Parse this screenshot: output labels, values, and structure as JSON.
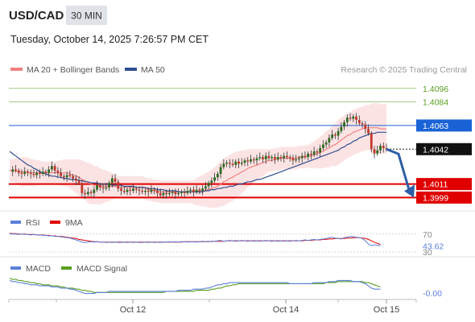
{
  "header": {
    "symbol": "USD/CAD",
    "timeframe": "30 MIN",
    "datetime": "Tuesday, October 14, 2025 7:26:57 PM CET",
    "credit": "Research © 2025 Trading Central"
  },
  "legend": {
    "ma20": {
      "label": "MA 20 + Bollinger Bands",
      "color": "#f08080"
    },
    "ma50": {
      "label": "MA 50",
      "color": "#2f4f8f"
    }
  },
  "chart_data": [
    {
      "type": "candlestick",
      "ylim": [
        1.399,
        1.4103
      ],
      "xticks": [
        "Oct 12",
        "Oct 14",
        "Oct 15"
      ],
      "current_price": 1.4042,
      "levels": [
        {
          "value": 1.4096,
          "label": "1.4096",
          "kind": "resistance",
          "color": "#5a9e1e"
        },
        {
          "value": 1.4084,
          "label": "1.4084",
          "kind": "resistance",
          "color": "#5a9e1e"
        },
        {
          "value": 1.4063,
          "label": "1.4063",
          "kind": "pivot",
          "color": "#1a63d6"
        },
        {
          "value": 1.4011,
          "label": "1.4011",
          "kind": "support",
          "color": "#e00000"
        },
        {
          "value": 1.3999,
          "label": "1.3999",
          "kind": "support",
          "color": "#e00000"
        }
      ],
      "price_path": [
        1.4022,
        1.4024,
        1.4023,
        1.4021,
        1.402,
        1.4022,
        1.4021,
        1.402,
        1.4019,
        1.4021,
        1.402,
        1.4022,
        1.4021,
        1.4024,
        1.4027,
        1.4023,
        1.4021,
        1.4018,
        1.4017,
        1.4019,
        1.4018,
        1.4016,
        1.4014,
        1.4012,
        1.4003,
        1.4002,
        1.4004,
        1.4003,
        1.4006,
        1.401,
        1.4008,
        1.4007,
        1.4008,
        1.4012,
        1.4016,
        1.4013,
        1.4007,
        1.4005,
        1.4004,
        1.4006,
        1.4005,
        1.4007,
        1.4006,
        1.4005,
        1.4004,
        1.4005,
        1.4004,
        1.4006,
        1.4005,
        1.4003,
        1.4001,
        1.4003,
        1.4002,
        1.4003,
        1.4004,
        1.4002,
        1.4003,
        1.4004,
        1.4003,
        1.4005,
        1.4006,
        1.4004,
        1.4006,
        1.4005,
        1.4007,
        1.4009,
        1.4012,
        1.4014,
        1.4017,
        1.402,
        1.4026,
        1.4029,
        1.403,
        1.4029,
        1.4028,
        1.4031,
        1.4029,
        1.403,
        1.4032,
        1.4031,
        1.4033,
        1.4032,
        1.4034,
        1.4035,
        1.4033,
        1.4036,
        1.4034,
        1.4035,
        1.4033,
        1.4035,
        1.4034,
        1.4036,
        1.4035,
        1.4034,
        1.4032,
        1.4033,
        1.4034,
        1.4036,
        1.4035,
        1.4038,
        1.4037,
        1.404,
        1.4039,
        1.4043,
        1.4046,
        1.4048,
        1.4052,
        1.4055,
        1.4054,
        1.4058,
        1.4062,
        1.4066,
        1.407,
        1.4069,
        1.4071,
        1.4068,
        1.4065,
        1.4064,
        1.406,
        1.4056,
        1.4042,
        1.4038,
        1.4041,
        1.4045,
        1.4043,
        1.4042
      ],
      "ma20": [
        1.4023,
        1.4023,
        1.4023,
        1.4022,
        1.4022,
        1.4022,
        1.4022,
        1.4021,
        1.4021,
        1.4021,
        1.4021,
        1.4021,
        1.4021,
        1.4021,
        1.4021,
        1.4021,
        1.4021,
        1.4021,
        1.4021,
        1.4021,
        1.402,
        1.4019,
        1.4018,
        1.4017,
        1.4015,
        1.4014,
        1.4012,
        1.4011,
        1.401,
        1.401,
        1.4009,
        1.4009,
        1.4009,
        1.4009,
        1.4009,
        1.4009,
        1.4008,
        1.4008,
        1.4008,
        1.4008,
        1.4008,
        1.4008,
        1.4008,
        1.4008,
        1.4008,
        1.4007,
        1.4006,
        1.4006,
        1.4005,
        1.4005,
        1.4004,
        1.4004,
        1.4004,
        1.4004,
        1.4004,
        1.4004,
        1.4004,
        1.4004,
        1.4004,
        1.4004,
        1.4004,
        1.4004,
        1.4004,
        1.4005,
        1.4005,
        1.4006,
        1.4006,
        1.4007,
        1.4008,
        1.4009,
        1.4011,
        1.4013,
        1.4014,
        1.4016,
        1.4017,
        1.4019,
        1.402,
        1.4022,
        1.4023,
        1.4025,
        1.4026,
        1.4027,
        1.4028,
        1.4029,
        1.403,
        1.4031,
        1.4032,
        1.4032,
        1.4033,
        1.4033,
        1.4034,
        1.4034,
        1.4034,
        1.4034,
        1.4034,
        1.4034,
        1.4035,
        1.4035,
        1.4035,
        1.4036,
        1.4036,
        1.4037,
        1.4038,
        1.4039,
        1.404,
        1.4042,
        1.4043,
        1.4045,
        1.4046,
        1.4048,
        1.405,
        1.4052,
        1.4054,
        1.4055,
        1.4057,
        1.4058,
        1.4059,
        1.406,
        1.4061,
        1.4061,
        1.4061,
        1.4061,
        1.4061,
        1.406,
        1.406,
        1.406
      ],
      "bb_width": [
        0.001,
        0.001,
        0.0011,
        0.0012,
        0.0013,
        0.0013,
        0.0013,
        0.0012,
        0.0012,
        0.0011,
        0.0011,
        0.001,
        0.001,
        0.001,
        0.001,
        0.001,
        0.0011,
        0.0011,
        0.0012,
        0.0012,
        0.0013,
        0.0014,
        0.0015,
        0.0016,
        0.0017,
        0.0017,
        0.0018,
        0.0018,
        0.0017,
        0.0017,
        0.0016,
        0.0015,
        0.0014,
        0.0013,
        0.0012,
        0.0011,
        0.001,
        0.001,
        0.001,
        0.001,
        0.001,
        0.001,
        0.001,
        0.001,
        0.001,
        0.001,
        0.001,
        0.001,
        0.001,
        0.001,
        0.001,
        0.001,
        0.001,
        0.001,
        0.001,
        0.001,
        0.001,
        0.001,
        0.001,
        0.001,
        0.001,
        0.0011,
        0.0012,
        0.0013,
        0.0014,
        0.0015,
        0.0016,
        0.0017,
        0.0018,
        0.0019,
        0.002,
        0.0021,
        0.0021,
        0.0021,
        0.0021,
        0.0021,
        0.002,
        0.0019,
        0.0018,
        0.0017,
        0.0016,
        0.0015,
        0.0014,
        0.0013,
        0.0012,
        0.0011,
        0.001,
        0.001,
        0.001,
        0.001,
        0.001,
        0.001,
        0.001,
        0.001,
        0.001,
        0.001,
        0.001,
        0.001,
        0.001,
        0.001,
        0.0011,
        0.0012,
        0.0013,
        0.0014,
        0.0015,
        0.0016,
        0.0017,
        0.0018,
        0.0019,
        0.002,
        0.002,
        0.002,
        0.002,
        0.002,
        0.002,
        0.002,
        0.002,
        0.002,
        0.002,
        0.002,
        0.0021,
        0.0022,
        0.0022,
        0.0022,
        0.0022,
        0.0022
      ],
      "ma50": [
        1.404,
        1.4038,
        1.4036,
        1.4034,
        1.4032,
        1.403,
        1.4028,
        1.4027,
        1.4025,
        1.4024,
        1.4022,
        1.4021,
        1.402,
        1.4019,
        1.4018,
        1.4018,
        1.4017,
        1.4017,
        1.4016,
        1.4016,
        1.4015,
        1.4015,
        1.4015,
        1.4014,
        1.4014,
        1.4013,
        1.4013,
        1.4012,
        1.4012,
        1.4012,
        1.4011,
        1.4011,
        1.4011,
        1.4011,
        1.401,
        1.401,
        1.401,
        1.401,
        1.4009,
        1.4009,
        1.4009,
        1.4009,
        1.4008,
        1.4008,
        1.4008,
        1.4008,
        1.4007,
        1.4007,
        1.4007,
        1.4006,
        1.4006,
        1.4006,
        1.4005,
        1.4005,
        1.4005,
        1.4005,
        1.4004,
        1.4004,
        1.4004,
        1.4004,
        1.4004,
        1.4004,
        1.4004,
        1.4004,
        1.4004,
        1.4005,
        1.4005,
        1.4006,
        1.4006,
        1.4007,
        1.4007,
        1.4008,
        1.4008,
        1.4009,
        1.4009,
        1.401,
        1.4011,
        1.4011,
        1.4012,
        1.4013,
        1.4013,
        1.4014,
        1.4015,
        1.4015,
        1.4016,
        1.4017,
        1.4018,
        1.4019,
        1.402,
        1.4021,
        1.4022,
        1.4023,
        1.4024,
        1.4025,
        1.4026,
        1.4027,
        1.4028,
        1.4029,
        1.403,
        1.4031,
        1.4032,
        1.4033,
        1.4034,
        1.4035,
        1.4036,
        1.4037,
        1.4038,
        1.4039,
        1.404,
        1.4041,
        1.4043,
        1.4044,
        1.4046,
        1.4047,
        1.4049,
        1.405,
        1.4052,
        1.4053,
        1.4054,
        1.4055,
        1.4056,
        1.4056,
        1.4057,
        1.4057,
        1.4057,
        1.4057
      ],
      "forecast_target": 1.3999
    },
    {
      "type": "line",
      "name": "RSI",
      "legend": [
        {
          "label": "RSI",
          "color": "#5b7fdb"
        },
        {
          "label": "9MA",
          "color": "#e00000"
        }
      ],
      "ylim": [
        30,
        75
      ],
      "axis_labels": [
        "70",
        "43.62",
        "30"
      ],
      "current": 43.62,
      "rsi": [
        71,
        70,
        70,
        69,
        70,
        69,
        69,
        68,
        69,
        68,
        68,
        67,
        67,
        66,
        66,
        65,
        65,
        64,
        63,
        62,
        61,
        59,
        57,
        55,
        52,
        51,
        52,
        53,
        52,
        53,
        52,
        52,
        51,
        52,
        51,
        52,
        51,
        51,
        52,
        51,
        52,
        51,
        52,
        51,
        51,
        52,
        51,
        52,
        51,
        52,
        51,
        52,
        52,
        53,
        52,
        53,
        52,
        53,
        53,
        52,
        53,
        53,
        52,
        53,
        54,
        53,
        54,
        53,
        54,
        55,
        56,
        54,
        55,
        56,
        55,
        54,
        55,
        56,
        55,
        54,
        55,
        54,
        55,
        54,
        55,
        56,
        55,
        54,
        55,
        54,
        55,
        54,
        55,
        54,
        55,
        56,
        55,
        56,
        57,
        56,
        57,
        58,
        57,
        58,
        59,
        60,
        62,
        63,
        61,
        60,
        59,
        62,
        63,
        65,
        64,
        63,
        62,
        60,
        55,
        48,
        44,
        46,
        45,
        43.62
      ],
      "ma9": [
        72,
        71,
        71,
        70,
        70,
        70,
        69,
        69,
        69,
        68,
        68,
        68,
        67,
        67,
        66,
        66,
        65,
        65,
        64,
        63,
        62,
        61,
        60,
        58,
        57,
        56,
        55,
        54,
        53,
        53,
        52,
        52,
        52,
        52,
        52,
        52,
        52,
        52,
        52,
        52,
        52,
        52,
        52,
        52,
        52,
        52,
        52,
        52,
        52,
        52,
        52,
        52,
        52,
        52,
        52,
        52,
        52,
        52,
        53,
        53,
        53,
        53,
        53,
        53,
        53,
        53,
        53,
        54,
        54,
        54,
        54,
        54,
        55,
        55,
        55,
        55,
        55,
        55,
        55,
        55,
        55,
        55,
        55,
        55,
        55,
        55,
        55,
        55,
        55,
        55,
        55,
        55,
        55,
        55,
        55,
        55,
        55,
        55,
        56,
        56,
        56,
        57,
        57,
        57,
        58,
        58,
        59,
        59,
        60,
        60,
        60,
        60,
        61,
        61,
        62,
        62,
        62,
        61,
        60,
        58,
        55,
        52,
        49,
        47
      ]
    },
    {
      "type": "line",
      "name": "MACD",
      "legend": [
        {
          "label": "MACD",
          "color": "#5b7fdb"
        },
        {
          "label": "MACD Signal",
          "color": "#5a9e1e"
        }
      ],
      "ylim": [
        -0.001,
        0.001
      ],
      "axis_labels": [
        "-0.00"
      ],
      "macd": [
        0.0006,
        0.0005,
        0.0005,
        0.0004,
        0.0004,
        0.0003,
        0.0003,
        0.0002,
        0.0002,
        0.0002,
        0.0001,
        0.0001,
        0.0001,
        0.0001,
        0.0,
        0.0,
        0.0,
        -0.0001,
        -0.0001,
        -0.0001,
        -0.0002,
        -0.0002,
        -0.0003,
        -0.0004,
        -0.0005,
        -0.0006,
        -0.0006,
        -0.0006,
        -0.0006,
        -0.0005,
        -0.0005,
        -0.0005,
        -0.0005,
        -0.0004,
        -0.0004,
        -0.0004,
        -0.0004,
        -0.0004,
        -0.0004,
        -0.0004,
        -0.0004,
        -0.0004,
        -0.0004,
        -0.0004,
        -0.0004,
        -0.0004,
        -0.0004,
        -0.0004,
        -0.0004,
        -0.0004,
        -0.0004,
        -0.0004,
        -0.0004,
        -0.0004,
        -0.0004,
        -0.0004,
        -0.0003,
        -0.0003,
        -0.0003,
        -0.0003,
        -0.0003,
        -0.0002,
        -0.0002,
        -0.0002,
        -0.0002,
        -0.0001,
        -0.0001,
        0.0,
        0.0001,
        0.0002,
        0.0002,
        0.0003,
        0.0003,
        0.0004,
        0.0004,
        0.0004,
        0.0004,
        0.0004,
        0.0004,
        0.0004,
        0.0004,
        0.0004,
        0.0004,
        0.0004,
        0.0004,
        0.0004,
        0.0004,
        0.0004,
        0.0004,
        0.0004,
        0.0004,
        0.0004,
        0.0004,
        0.0003,
        0.0003,
        0.0003,
        0.0003,
        0.0003,
        0.0003,
        0.0003,
        0.0003,
        0.0004,
        0.0004,
        0.0004,
        0.0004,
        0.0004,
        0.0005,
        0.0005,
        0.0005,
        0.0006,
        0.0006,
        0.0006,
        0.0006,
        0.0006,
        0.0005,
        0.0005,
        0.0005,
        0.0004,
        0.0003,
        0.0001,
        -0.0001,
        -0.0002,
        -0.0002,
        -0.0002
      ],
      "signal": [
        0.0008,
        0.0007,
        0.0007,
        0.0006,
        0.0006,
        0.0005,
        0.0005,
        0.0004,
        0.0004,
        0.0003,
        0.0003,
        0.0002,
        0.0002,
        0.0002,
        0.0001,
        0.0001,
        0.0001,
        0.0,
        0.0,
        -0.0001,
        -0.0001,
        -0.0001,
        -0.0002,
        -0.0002,
        -0.0003,
        -0.0003,
        -0.0004,
        -0.0004,
        -0.0005,
        -0.0005,
        -0.0005,
        -0.0005,
        -0.0005,
        -0.0005,
        -0.0005,
        -0.0005,
        -0.0005,
        -0.0005,
        -0.0005,
        -0.0005,
        -0.0005,
        -0.0005,
        -0.0005,
        -0.0005,
        -0.0005,
        -0.0005,
        -0.0005,
        -0.0005,
        -0.0005,
        -0.0005,
        -0.0005,
        -0.0005,
        -0.0004,
        -0.0004,
        -0.0004,
        -0.0004,
        -0.0004,
        -0.0004,
        -0.0004,
        -0.0004,
        -0.0004,
        -0.0004,
        -0.0003,
        -0.0003,
        -0.0003,
        -0.0003,
        -0.0003,
        -0.0002,
        -0.0002,
        -0.0001,
        -0.0001,
        0.0,
        0.0001,
        0.0001,
        0.0002,
        0.0002,
        0.0003,
        0.0003,
        0.0003,
        0.0003,
        0.0003,
        0.0003,
        0.0003,
        0.0003,
        0.0003,
        0.0003,
        0.0003,
        0.0003,
        0.0003,
        0.0003,
        0.0003,
        0.0003,
        0.0003,
        0.0003,
        0.0003,
        0.0003,
        0.0003,
        0.0003,
        0.0003,
        0.0003,
        0.0003,
        0.0003,
        0.0003,
        0.0003,
        0.0003,
        0.0004,
        0.0004,
        0.0004,
        0.0004,
        0.0005,
        0.0005,
        0.0005,
        0.0005,
        0.0005,
        0.0005,
        0.0005,
        0.0005,
        0.0005,
        0.0004,
        0.0004,
        0.0003,
        0.0002,
        0.0001,
        0.0
      ]
    }
  ]
}
